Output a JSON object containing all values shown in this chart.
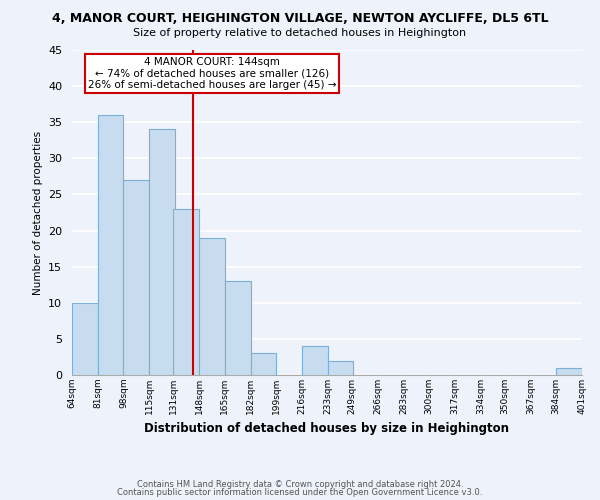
{
  "title": "4, MANOR COURT, HEIGHINGTON VILLAGE, NEWTON AYCLIFFE, DL5 6TL",
  "subtitle": "Size of property relative to detached houses in Heighington",
  "xlabel": "Distribution of detached houses by size in Heighington",
  "ylabel": "Number of detached properties",
  "bar_color": "#c8dcf0",
  "bar_edge_color": "#7ab0d8",
  "bar_bins": [
    64,
    81,
    98,
    115,
    131,
    148,
    165,
    182,
    199,
    216,
    233,
    249,
    266,
    283,
    300,
    317,
    334,
    350,
    367,
    384,
    401
  ],
  "bar_values": [
    10,
    36,
    27,
    34,
    23,
    19,
    13,
    3,
    0,
    4,
    2,
    0,
    0,
    0,
    0,
    0,
    0,
    0,
    0,
    1
  ],
  "tick_labels": [
    "64sqm",
    "81sqm",
    "98sqm",
    "115sqm",
    "131sqm",
    "148sqm",
    "165sqm",
    "182sqm",
    "199sqm",
    "216sqm",
    "233sqm",
    "249sqm",
    "266sqm",
    "283sqm",
    "300sqm",
    "317sqm",
    "334sqm",
    "350sqm",
    "367sqm",
    "384sqm",
    "401sqm"
  ],
  "property_line_x": 144,
  "annotation_title": "4 MANOR COURT: 144sqm",
  "annotation_line1": "← 74% of detached houses are smaller (126)",
  "annotation_line2": "26% of semi-detached houses are larger (45) →",
  "ylim": [
    0,
    45
  ],
  "yticks": [
    0,
    5,
    10,
    15,
    20,
    25,
    30,
    35,
    40,
    45
  ],
  "footer1": "Contains HM Land Registry data © Crown copyright and database right 2024.",
  "footer2": "Contains public sector information licensed under the Open Government Licence v3.0.",
  "bg_color": "#eef2fa",
  "grid_color": "#ffffff",
  "annotation_box_color": "#ffffff",
  "annotation_box_edge": "#cc0000",
  "property_line_color": "#cc0000"
}
